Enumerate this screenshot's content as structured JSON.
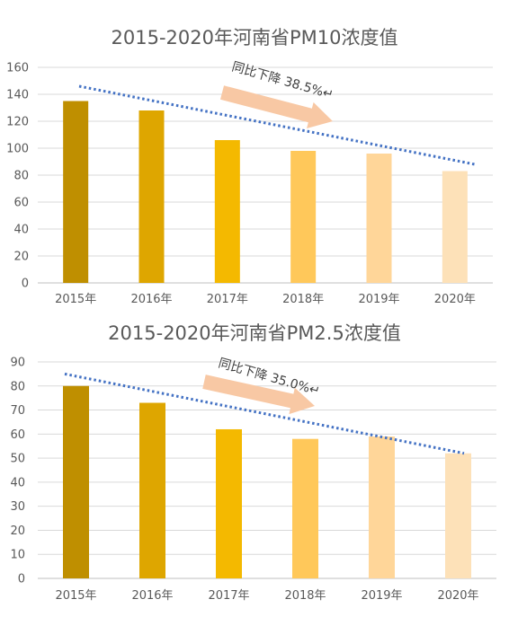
{
  "colors": {
    "bars": [
      "#bf8f00",
      "#dea600",
      "#f4b900",
      "#ffc85a",
      "#ffd699",
      "#fde1b8"
    ],
    "trend": "#4472c4",
    "arrow": "#f8c8a4",
    "grid": "#d9d9d9"
  },
  "chart_data": [
    {
      "type": "bar",
      "title": "2015-2020年河南省PM10浓度值",
      "categories": [
        "2015年",
        "2016年",
        "2017年",
        "2018年",
        "2019年",
        "2020年"
      ],
      "values": [
        135,
        128,
        106,
        98,
        96,
        83
      ],
      "ylim": [
        0,
        160
      ],
      "yticks": [
        0,
        20,
        40,
        60,
        80,
        100,
        120,
        140,
        160
      ],
      "grid": true,
      "trendline": {
        "start": 146,
        "end": 88
      },
      "annotation": "同比下降 38.5%↵"
    },
    {
      "type": "bar",
      "title": "2015-2020年河南省PM2.5浓度值",
      "categories": [
        "2015年",
        "2016年",
        "2017年",
        "2018年",
        "2019年",
        "2020年"
      ],
      "values": [
        80,
        73,
        62,
        58,
        59,
        52
      ],
      "ylim": [
        0,
        90
      ],
      "yticks": [
        0,
        10,
        20,
        30,
        40,
        50,
        60,
        70,
        80,
        90
      ],
      "grid": true,
      "trendline": {
        "start": 85,
        "end": 52
      },
      "annotation": "同比下降 35.0%↵"
    }
  ]
}
